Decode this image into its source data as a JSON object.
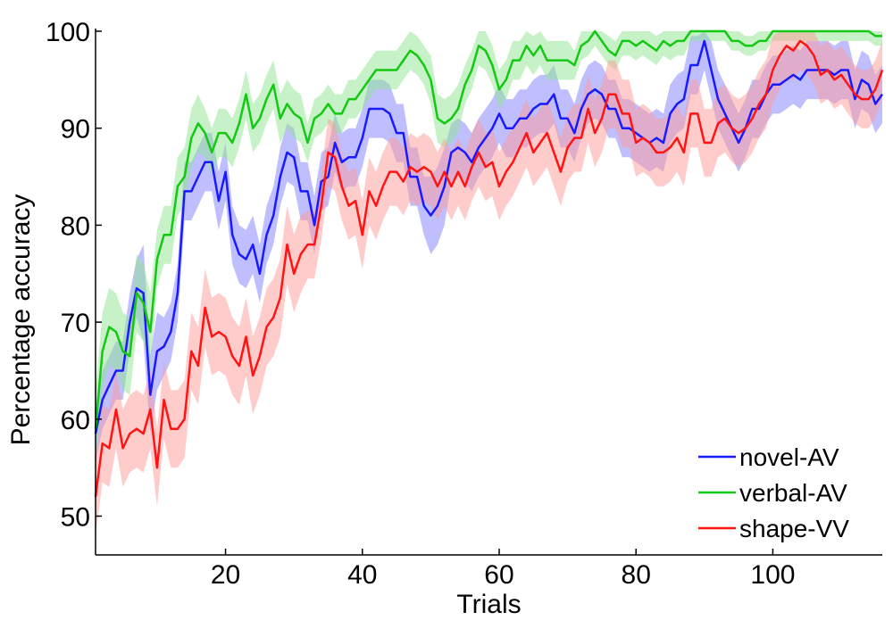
{
  "chart_data": {
    "type": "line",
    "xlabel": "Trials",
    "ylabel": "Percentage accuracy",
    "xlim": [
      1,
      116
    ],
    "ylim": [
      46,
      100
    ],
    "xticks": [
      20,
      40,
      60,
      80,
      100
    ],
    "yticks": [
      50,
      60,
      70,
      80,
      90,
      100
    ],
    "grid": false,
    "legend_position": "bottom-right",
    "series": [
      {
        "name": "novel-AV",
        "color": "#1a1aff",
        "band_color": "#8080ff",
        "band_halfwidth": [
          3,
          3,
          3,
          3,
          3,
          3,
          3,
          5,
          4,
          4,
          3,
          3,
          3,
          3,
          3,
          3,
          3,
          3,
          3,
          3,
          3,
          3,
          3,
          3,
          3,
          3,
          3,
          3,
          3,
          3,
          3,
          3,
          3,
          3,
          3,
          3,
          3,
          3,
          3,
          3,
          3,
          3,
          3,
          3,
          3,
          3,
          3,
          3,
          3,
          4,
          4,
          4,
          3,
          3,
          3,
          3,
          3,
          3,
          3,
          3,
          3,
          3,
          3,
          3,
          3,
          3,
          3,
          3,
          3,
          3,
          3,
          3,
          3,
          3,
          3,
          3,
          3,
          3,
          3,
          3,
          3,
          3,
          3,
          3,
          3,
          3,
          3,
          3,
          3,
          3,
          3,
          3,
          3,
          3,
          3,
          3,
          3,
          3,
          3,
          3,
          3,
          3,
          3,
          3,
          3,
          3,
          3,
          3,
          3,
          3,
          3,
          3,
          3,
          3,
          3,
          3
        ],
        "x": [
          1,
          2,
          3,
          4,
          5,
          6,
          7,
          8,
          9,
          10,
          11,
          12,
          13,
          14,
          15,
          16,
          17,
          18,
          19,
          20,
          21,
          22,
          23,
          24,
          25,
          26,
          27,
          28,
          29,
          30,
          31,
          32,
          33,
          34,
          35,
          36,
          37,
          38,
          39,
          40,
          41,
          42,
          43,
          44,
          45,
          46,
          47,
          48,
          49,
          50,
          51,
          52,
          53,
          54,
          55,
          56,
          57,
          58,
          59,
          60,
          61,
          62,
          63,
          64,
          65,
          66,
          67,
          68,
          69,
          70,
          71,
          72,
          73,
          74,
          75,
          76,
          77,
          78,
          79,
          80,
          81,
          82,
          83,
          84,
          85,
          86,
          87,
          88,
          89,
          90,
          91,
          92,
          93,
          94,
          95,
          96,
          97,
          98,
          99,
          100,
          101,
          102,
          103,
          104,
          105,
          106,
          107,
          108,
          109,
          110,
          111,
          112,
          113,
          114,
          115,
          116
        ],
        "y": [
          58.5,
          62,
          63.5,
          65,
          65,
          70,
          73.5,
          73,
          62.5,
          67,
          67.5,
          69,
          73,
          83.5,
          83.5,
          85,
          86.5,
          86.5,
          82.5,
          85.5,
          79,
          77,
          76.5,
          78,
          75,
          79,
          81,
          85,
          87.5,
          87,
          83.5,
          83.5,
          80,
          84.5,
          85,
          88.5,
          86.5,
          87,
          87,
          89,
          92,
          92,
          92,
          91.5,
          89.5,
          89.5,
          85,
          85,
          82,
          81,
          82,
          84,
          87.5,
          88,
          87.5,
          86.5,
          88,
          89,
          90,
          91.5,
          90,
          90,
          91,
          91,
          92,
          92.5,
          92.5,
          93.5,
          91,
          91,
          89.5,
          92,
          93.5,
          94,
          93.5,
          92,
          92,
          90,
          90,
          89.5,
          89,
          88.5,
          89,
          88.5,
          91.5,
          92.5,
          93,
          96.5,
          96.5,
          99,
          96,
          93,
          91.5,
          90,
          88.5,
          90,
          92,
          92,
          93.5,
          94.5,
          94.5,
          95,
          95.5,
          95,
          96,
          96,
          96,
          96,
          95.5,
          96,
          96,
          93,
          95,
          94.5,
          92.5,
          93.5
        ]
      },
      {
        "name": "verbal-AV",
        "color": "#14c814",
        "band_color": "#8fe68f",
        "band_halfwidth": [
          4,
          4,
          4,
          4,
          4,
          4,
          4,
          4,
          4,
          3,
          3,
          3,
          3,
          3,
          3,
          3,
          2.5,
          2.5,
          2.5,
          2.5,
          2.5,
          2.5,
          2.5,
          2.5,
          2.5,
          2.5,
          2.5,
          2.5,
          2.5,
          2.5,
          2.5,
          2,
          2,
          2,
          2,
          2,
          2,
          2,
          2,
          2,
          2,
          2,
          2,
          2,
          2,
          2,
          2,
          2,
          2,
          2.5,
          2.5,
          2.5,
          2.5,
          2.5,
          2,
          2,
          2,
          2,
          2,
          2,
          2,
          2,
          2,
          2,
          2,
          2,
          2,
          2,
          2,
          2,
          1.5,
          1.5,
          1.5,
          1.5,
          1.5,
          1.5,
          1.5,
          1.5,
          1.5,
          1.5,
          1.5,
          1.5,
          1.5,
          1.5,
          1.5,
          1.5,
          1.5,
          1,
          1,
          1,
          1,
          1,
          1,
          1,
          1,
          1,
          1,
          1,
          1,
          1,
          1,
          1,
          1,
          1,
          1,
          1,
          1,
          1,
          1,
          1,
          1,
          1,
          1,
          1,
          1,
          1
        ],
        "x": [
          1,
          2,
          3,
          4,
          5,
          6,
          7,
          8,
          9,
          10,
          11,
          12,
          13,
          14,
          15,
          16,
          17,
          18,
          19,
          20,
          21,
          22,
          23,
          24,
          25,
          26,
          27,
          28,
          29,
          30,
          31,
          32,
          33,
          34,
          35,
          36,
          37,
          38,
          39,
          40,
          41,
          42,
          43,
          44,
          45,
          46,
          47,
          48,
          49,
          50,
          51,
          52,
          53,
          54,
          55,
          56,
          57,
          58,
          59,
          60,
          61,
          62,
          63,
          64,
          65,
          66,
          67,
          68,
          69,
          70,
          71,
          72,
          73,
          74,
          75,
          76,
          77,
          78,
          79,
          80,
          81,
          82,
          83,
          84,
          85,
          86,
          87,
          88,
          89,
          90,
          91,
          92,
          93,
          94,
          95,
          96,
          97,
          98,
          99,
          100,
          101,
          102,
          103,
          104,
          105,
          106,
          107,
          108,
          109,
          110,
          111,
          112,
          113,
          114,
          115,
          116
        ],
        "y": [
          59,
          67,
          69.5,
          69,
          67,
          66.5,
          73,
          72,
          69,
          76.5,
          79,
          79,
          84,
          85,
          89,
          90.5,
          89.5,
          87.5,
          89.5,
          89.5,
          88.5,
          90.5,
          93.5,
          90,
          91,
          93,
          94.5,
          91,
          92.5,
          91.5,
          91,
          88.5,
          91,
          91.5,
          92.5,
          91.5,
          91.5,
          93,
          93,
          94,
          95,
          96,
          96,
          96,
          96,
          97,
          98,
          97.5,
          96.5,
          95,
          91,
          90.5,
          91,
          92,
          94.5,
          96,
          98.5,
          98,
          96.5,
          94,
          95,
          97,
          97,
          98.5,
          97.5,
          98.5,
          97,
          97,
          97,
          97,
          96.5,
          98.5,
          99,
          100,
          99,
          98,
          97.5,
          99,
          99,
          98.5,
          99,
          98.5,
          98,
          99,
          98.5,
          99,
          99,
          100,
          100,
          100,
          100,
          100,
          100,
          99,
          99,
          98.5,
          98.5,
          99,
          99,
          100,
          100,
          100,
          100,
          100,
          100,
          100,
          100,
          100,
          100,
          100,
          100,
          100,
          100,
          100,
          99.5,
          99.5
        ]
      },
      {
        "name": "shape-VV",
        "color": "#ff1414",
        "band_color": "#ff9a9a",
        "band_halfwidth": [
          4,
          4,
          4,
          4,
          4,
          4,
          4,
          4,
          4,
          4,
          4,
          4,
          4,
          4,
          4,
          4,
          4,
          4,
          4,
          4,
          4,
          4,
          4,
          4,
          4,
          4,
          4,
          4,
          4,
          4,
          4,
          3.5,
          3.5,
          3.5,
          3.5,
          3.5,
          3.5,
          3.5,
          3.5,
          3.5,
          3.5,
          3.5,
          3.5,
          3.5,
          3.5,
          3.5,
          3.5,
          3.5,
          3.5,
          3.5,
          3.5,
          3.5,
          3.5,
          3.5,
          3.5,
          3.5,
          3.5,
          3.5,
          3.5,
          3.5,
          3.5,
          3.5,
          3.5,
          3.5,
          3.5,
          3.5,
          3.5,
          3.5,
          3.5,
          3.5,
          3.5,
          3.5,
          3.5,
          3.5,
          3.5,
          3.5,
          3.5,
          3.5,
          3.5,
          3.5,
          3.5,
          3.5,
          3.5,
          3.5,
          3.5,
          3.5,
          3.5,
          3.5,
          3.5,
          3.5,
          3.5,
          3.5,
          3.5,
          3.5,
          3.5,
          3.5,
          3.5,
          3.5,
          3.5,
          3.5,
          3.5,
          3.5,
          3,
          3,
          3,
          3,
          3,
          3,
          3,
          3,
          3,
          3,
          3,
          3,
          3,
          3,
          3
        ],
        "x": [
          1,
          2,
          3,
          4,
          5,
          6,
          7,
          8,
          9,
          10,
          11,
          12,
          13,
          14,
          15,
          16,
          17,
          18,
          19,
          20,
          21,
          22,
          23,
          24,
          25,
          26,
          27,
          28,
          29,
          30,
          31,
          32,
          33,
          34,
          35,
          36,
          37,
          38,
          39,
          40,
          41,
          42,
          43,
          44,
          45,
          46,
          47,
          48,
          49,
          50,
          51,
          52,
          53,
          54,
          55,
          56,
          57,
          58,
          59,
          60,
          61,
          62,
          63,
          64,
          65,
          66,
          67,
          68,
          69,
          70,
          71,
          72,
          73,
          74,
          75,
          76,
          77,
          78,
          79,
          80,
          81,
          82,
          83,
          84,
          85,
          86,
          87,
          88,
          89,
          90,
          91,
          92,
          93,
          94,
          95,
          96,
          97,
          98,
          99,
          100,
          101,
          102,
          103,
          104,
          105,
          106,
          107,
          108,
          109,
          110,
          111,
          112,
          113,
          114,
          115,
          116
        ],
        "y": [
          52,
          57.5,
          57,
          61,
          57,
          58.5,
          59,
          58.5,
          61,
          55,
          62,
          59,
          59,
          60,
          67,
          65.5,
          71.5,
          68.5,
          69,
          68.5,
          66.5,
          65.5,
          68.5,
          64.5,
          66.5,
          69.5,
          70.5,
          72.5,
          78,
          75,
          77,
          78,
          78,
          82,
          87.5,
          87,
          84,
          82,
          82.5,
          79,
          83.5,
          82,
          84,
          85.5,
          85.5,
          84.5,
          86,
          85.5,
          86,
          85.5,
          84,
          85.5,
          84,
          85.5,
          84,
          86,
          87.5,
          86,
          86.5,
          84,
          85.5,
          86.5,
          88,
          89.5,
          87.5,
          88.5,
          89.5,
          87.5,
          85.5,
          88,
          89,
          89,
          92,
          89.5,
          91,
          93.5,
          93.5,
          91.5,
          91.5,
          88.5,
          89,
          88.5,
          87.5,
          87.5,
          88,
          89,
          87.5,
          91.5,
          91.5,
          88.5,
          88.5,
          90.5,
          91,
          90,
          89.5,
          90,
          91,
          92.5,
          93.5,
          96,
          97.5,
          98.5,
          98,
          99,
          98.5,
          97.5,
          95.5,
          96,
          95,
          95.5,
          94.5,
          93.5,
          93,
          93,
          94,
          96
        ]
      }
    ]
  }
}
